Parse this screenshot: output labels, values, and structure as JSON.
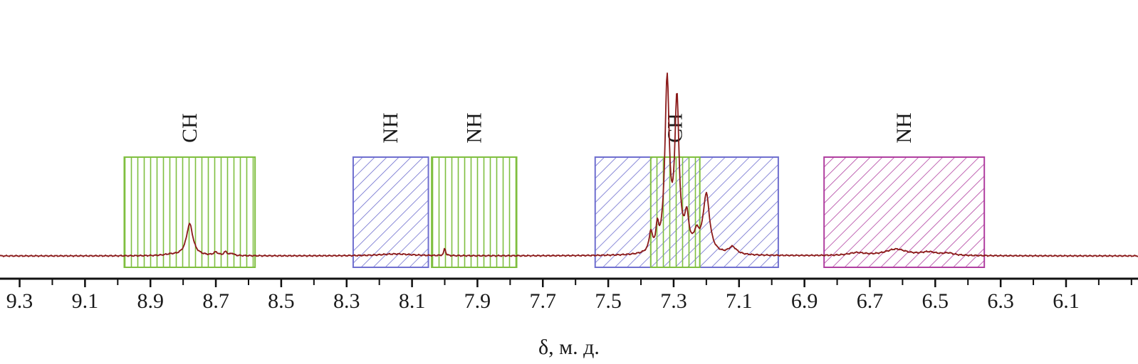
{
  "chart_data": {
    "type": "line",
    "xlabel": "δ, м. д.",
    "xlim": [
      9.36,
      5.88
    ],
    "x_reversed": true,
    "ticks": [
      "9.3",
      "9.1",
      "8.9",
      "8.7",
      "8.5",
      "8.3",
      "8.1",
      "7.9",
      "7.7",
      "7.5",
      "7.3",
      "7.1",
      "6.9",
      "6.7",
      "6.5",
      "6.3",
      "6.1"
    ],
    "tick_values": [
      9.3,
      9.1,
      8.9,
      8.7,
      8.5,
      8.3,
      8.1,
      7.9,
      7.7,
      7.5,
      7.3,
      7.1,
      6.9,
      6.7,
      6.5,
      6.3,
      6.1
    ],
    "line_color": "#8b1a1a",
    "spectrum": {
      "baseline": 0,
      "peaks": [
        {
          "x": 8.78,
          "height": 0.3,
          "width": 0.012
        },
        {
          "x": 8.84,
          "height": 0.01,
          "width": 0.02
        },
        {
          "x": 8.7,
          "height": 0.03,
          "width": 0.008
        },
        {
          "x": 8.67,
          "height": 0.035,
          "width": 0.006
        },
        {
          "x": 8.65,
          "height": 0.02,
          "width": 0.006
        },
        {
          "x": 8.15,
          "height": 0.018,
          "width": 0.06
        },
        {
          "x": 8.0,
          "height": 0.07,
          "width": 0.003
        },
        {
          "x": 7.37,
          "height": 0.18,
          "width": 0.006
        },
        {
          "x": 7.35,
          "height": 0.2,
          "width": 0.005
        },
        {
          "x": 7.32,
          "height": 1.6,
          "width": 0.008
        },
        {
          "x": 7.29,
          "height": 1.4,
          "width": 0.008
        },
        {
          "x": 7.26,
          "height": 0.3,
          "width": 0.008
        },
        {
          "x": 7.23,
          "height": 0.15,
          "width": 0.01
        },
        {
          "x": 7.2,
          "height": 0.55,
          "width": 0.012
        },
        {
          "x": 7.12,
          "height": 0.07,
          "width": 0.015
        },
        {
          "x": 6.74,
          "height": 0.025,
          "width": 0.03
        },
        {
          "x": 6.62,
          "height": 0.06,
          "width": 0.04
        },
        {
          "x": 6.52,
          "height": 0.03,
          "width": 0.03
        },
        {
          "x": 6.46,
          "height": 0.02,
          "width": 0.02
        }
      ]
    },
    "regions": [
      {
        "label": "CH",
        "from": 8.98,
        "to": 8.58,
        "color": "#7fbf3f",
        "pattern": "vertical"
      },
      {
        "label": "NH",
        "from": 8.28,
        "to": 8.05,
        "color": "#6f6fcf",
        "pattern": "diagonal"
      },
      {
        "label": "NH",
        "from": 8.04,
        "to": 7.78,
        "color": "#7fbf3f",
        "pattern": "vertical"
      },
      {
        "label": "",
        "from": 7.54,
        "to": 6.98,
        "color": "#6f6fcf",
        "pattern": "diagonal"
      },
      {
        "label": "CH",
        "from": 7.37,
        "to": 7.22,
        "color": "#7fbf3f",
        "pattern": "vertical"
      },
      {
        "label": "NH",
        "from": 6.84,
        "to": 6.35,
        "color": "#b03fa0",
        "pattern": "diagonal"
      }
    ]
  }
}
